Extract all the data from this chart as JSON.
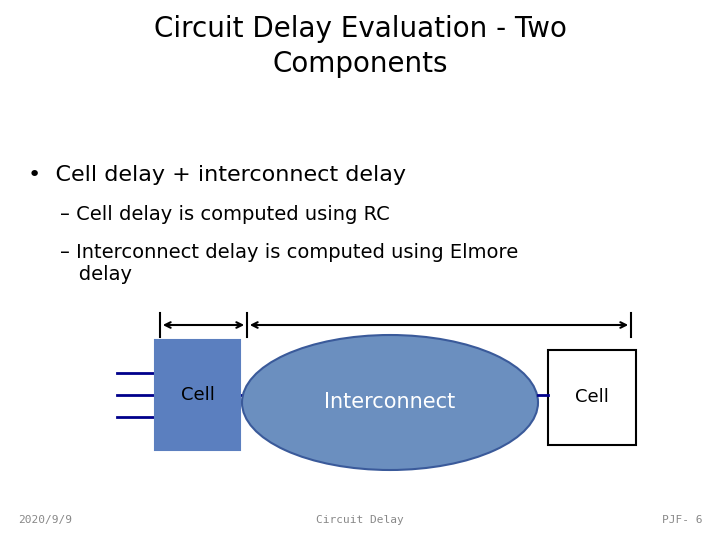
{
  "title": "Circuit Delay Evaluation - Two\nComponents",
  "bullet1": "•  Cell delay + interconnect delay",
  "sub1": "– Cell delay is computed using RC",
  "sub2": "– Interconnect delay is computed using Elmore\n   delay",
  "cell_color": "#5B7FBF",
  "cell_text_color": "#000000",
  "interconnect_color": "#6B8FBF",
  "interconnect_border": "#3A5A9A",
  "cell2_color": "#ffffff",
  "cell2_border": "#000000",
  "line_color": "#00008B",
  "footer_left": "2020/9/9",
  "footer_center": "Circuit Delay",
  "footer_right": "PJF- 6",
  "bg_color": "#ffffff",
  "title_fontsize": 20,
  "bullet_fontsize": 16,
  "sub_fontsize": 14,
  "footer_fontsize": 8,
  "diagram_cell_label_fontsize": 13,
  "diagram_interconnect_label_fontsize": 15
}
